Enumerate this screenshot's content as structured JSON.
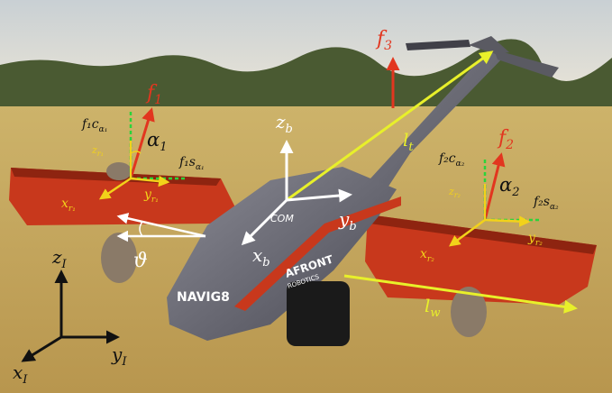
{
  "colors": {
    "sky_top": "#c9d0d4",
    "sky_bottom": "#e6e2d6",
    "tree_line": "#4a5a32",
    "field_far": "#cdb36a",
    "field_near": "#b8964e",
    "wing_red": "#c8381c",
    "wing_dark": "#8e2410",
    "fuselage": "#6f6f78",
    "fuselage_dark": "#3c3c44",
    "motor": "#8a7a68",
    "force_red": "#e2361f",
    "frame_white": "#ffffff",
    "rotor_axis_yellow": "#f2d21a",
    "component_green": "#2bd43a",
    "length_yellow": "#e8f02a",
    "inertial_black": "#111111"
  },
  "labels": {
    "f1": "f",
    "f1_sub": "1",
    "f2": "f",
    "f2_sub": "2",
    "f3": "f",
    "f3_sub": "3",
    "alpha1": "α",
    "alpha1_sub": "1",
    "alpha2": "α",
    "alpha2_sub": "2",
    "f1c": "f₁c",
    "f1c_sub": "α₁",
    "f1s": "f₁s",
    "f1s_sub": "α₁",
    "f2c": "f₂c",
    "f2c_sub": "α₂",
    "f2s": "f₂s",
    "f2s_sub": "α₂",
    "zr1": "z",
    "zr1_sub": "r₁",
    "xr1": "x",
    "xr1_sub": "r₁",
    "yr1": "y",
    "yr1_sub": "r₁",
    "zr2": "z",
    "zr2_sub": "r₂",
    "xr2": "x",
    "xr2_sub": "r₂",
    "yr2": "y",
    "yr2_sub": "r₂",
    "zb": "z",
    "zb_sub": "b",
    "xb": "x",
    "xb_sub": "b",
    "yb": "y",
    "yb_sub": "b",
    "com": "COM",
    "theta": "ϑ",
    "lt": "l",
    "lt_sub": "t",
    "lw": "l",
    "lw_sub": "w",
    "zI": "z",
    "zI_sub": "I",
    "xI": "x",
    "xI_sub": "I",
    "yI": "y",
    "yI_sub": "I",
    "brand_name": "NAVIG8",
    "brand_maker": "AFRONT",
    "brand_maker_sub": "ROBOTICS"
  }
}
